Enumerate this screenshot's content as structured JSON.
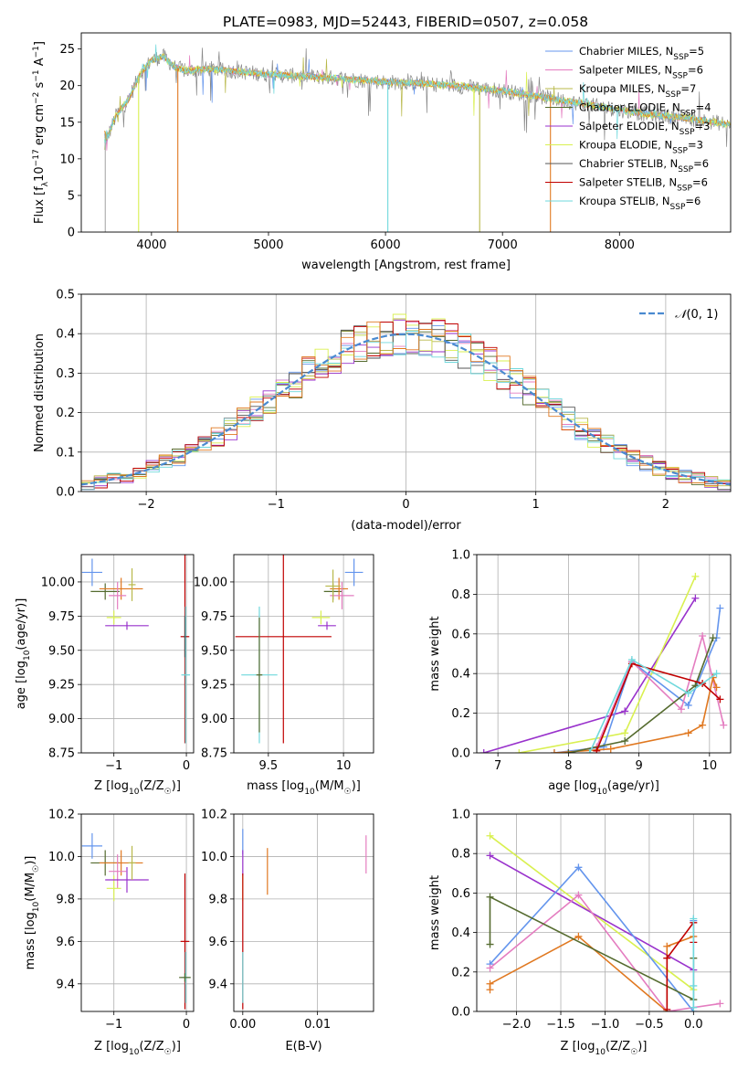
{
  "figure": {
    "title": "PLATE=0983, MJD=52443, FIBERID=0507, z=0.058"
  },
  "colors": {
    "chabrier_miles": "#6495ED",
    "salpeter_miles": "#E47DC0",
    "kroupa_miles": "#B8B84A",
    "chabrier_elodie": "#556B2F",
    "salpeter_elodie": "#9932CC",
    "kroupa_elodie": "#D9F050",
    "chabrier_stelib": "#555555",
    "salpeter_stelib": "#C00000",
    "kroupa_stelib": "#6FD8DC",
    "orange": "#E07820",
    "green": "#5E8A5E",
    "gauss": "#4A8AD0"
  },
  "chart_data": [
    {
      "id": "spectrum",
      "type": "line",
      "title": "PLATE=0983, MJD=52443, FIBERID=0507, z=0.058",
      "xlabel": "wavelength [Angstrom, rest frame]",
      "ylabel_prefix": "Flux [f",
      "ylabel_sub": "λ",
      "ylabel_mid": "10",
      "ylabel_sup1": "−17",
      "ylabel_mid2": " erg cm",
      "ylabel_sup2": "−2",
      "ylabel_mid3": " s",
      "ylabel_sup3": "−1",
      "ylabel_mid4": " A",
      "ylabel_sup4": "−1",
      "ylabel_end": "]",
      "xlim": [
        3400,
        8950
      ],
      "ylim": [
        0,
        27.2
      ],
      "xticks": [
        4000,
        5000,
        6000,
        7000,
        8000
      ],
      "yticks": [
        0,
        5,
        10,
        15,
        20,
        25
      ],
      "legend_position": "upper-right",
      "legend": [
        {
          "model": "Chabrier MILES, N",
          "sub": "SSP",
          "count": "=5",
          "color": "#6495ED"
        },
        {
          "model": "Salpeter MILES, N",
          "sub": "SSP",
          "count": "=6",
          "color": "#E47DC0"
        },
        {
          "model": "Kroupa MILES, N",
          "sub": "SSP",
          "count": "=7",
          "color": "#B8B84A"
        },
        {
          "model": "Chabrier ELODIE, N",
          "sub": "SSP",
          "count": "=4",
          "color": "#556B2F"
        },
        {
          "model": "Salpeter ELODIE, N",
          "sub": "SSP",
          "count": "=3",
          "color": "#9932CC"
        },
        {
          "model": "Kroupa ELODIE, N",
          "sub": "SSP",
          "count": "=3",
          "color": "#D9F050"
        },
        {
          "model": "Chabrier STELIB, N",
          "sub": "SSP",
          "count": "=6",
          "color": "#555555"
        },
        {
          "model": "Salpeter STELIB, N",
          "sub": "SSP",
          "count": "=6",
          "color": "#C00000"
        },
        {
          "model": "Kroupa STELIB, N",
          "sub": "SSP",
          "count": "=6",
          "color": "#6FD8DC"
        }
      ],
      "continuum": {
        "x": [
          3600,
          3700,
          3800,
          3900,
          4000,
          4100,
          4200,
          4300,
          4500,
          4700,
          5000,
          5300,
          5600,
          6000,
          6300,
          6600,
          7000,
          7400,
          7800,
          8200,
          8600,
          8900
        ],
        "y": [
          12.0,
          16.0,
          18.0,
          21.5,
          23.5,
          24.0,
          22.5,
          22.0,
          22.3,
          22.0,
          21.5,
          21.3,
          21.0,
          20.5,
          20.3,
          20.0,
          19.3,
          18.3,
          17.2,
          16.2,
          15.5,
          14.8
        ]
      },
      "spikes": [
        {
          "x": 3605,
          "ymin": 0,
          "color": "#aaaaaa"
        },
        {
          "x": 3890,
          "ymin": 0,
          "color": "#D9F050"
        },
        {
          "x": 4225,
          "ymin": 0,
          "color": "#E07820"
        },
        {
          "x": 6020,
          "ymin": 0,
          "color": "#6FD8DC"
        },
        {
          "x": 6805,
          "ymin": 0,
          "color": "#B8B84A"
        },
        {
          "x": 7410,
          "ymin": 0,
          "color": "#E07820"
        }
      ]
    },
    {
      "id": "residuals",
      "type": "bar",
      "xlabel": "(data-model)/error",
      "ylabel": "Normed distribution",
      "xlim": [
        -2.5,
        2.5
      ],
      "ylim": [
        0,
        0.5
      ],
      "xticks": [
        -2,
        -1,
        0,
        1,
        2
      ],
      "yticks": [
        0.0,
        0.1,
        0.2,
        0.3,
        0.4,
        0.5
      ],
      "legend_position": "upper-right",
      "gauss_label": "(0, 1)",
      "gauss_script": "𝒩",
      "bins": 50
    },
    {
      "id": "age_vs_Z",
      "type": "scatter",
      "xlabel_prefix": "Z [log",
      "xlabel_sub": "10",
      "xlabel_body": "(Z/Z",
      "xlabel_sub2": "☉",
      "xlabel_end": ")]",
      "ylabel_prefix": "age  [log",
      "ylabel_sub": "10",
      "ylabel_body": "(age/yr)]",
      "xlim": [
        -1.45,
        0.1
      ],
      "ylim": [
        8.75,
        10.2
      ],
      "xticks": [
        -1,
        0
      ],
      "yticks": [
        8.75,
        9.0,
        9.25,
        9.5,
        9.75,
        10.0
      ],
      "points": [
        {
          "x": -1.3,
          "y": 10.07,
          "xerr": 0.14,
          "yerr": 0.1,
          "color": "#6495ED"
        },
        {
          "x": -1.12,
          "y": 9.93,
          "xerr": 0.2,
          "yerr": 0.06,
          "color": "#556B2F"
        },
        {
          "x": -0.9,
          "y": 9.95,
          "xerr": 0.3,
          "yerr": 0.08,
          "color": "#E07820"
        },
        {
          "x": -0.95,
          "y": 9.9,
          "xerr": 0.12,
          "yerr": 0.1,
          "color": "#E47DC0"
        },
        {
          "x": -1.0,
          "y": 9.74,
          "xerr": 0.1,
          "yerr": 0.05,
          "color": "#D9F050"
        },
        {
          "x": -0.82,
          "y": 9.68,
          "xerr": 0.3,
          "yerr": 0.03,
          "color": "#9932CC"
        },
        {
          "x": -0.75,
          "y": 9.98,
          "xerr": 0.05,
          "yerr": 0.12,
          "color": "#B8B84A"
        },
        {
          "x": -0.02,
          "y": 9.6,
          "xerr": 0.06,
          "yerr": 0.78,
          "color": "#C00000"
        },
        {
          "x": -0.01,
          "y": 9.32,
          "xerr": 0.06,
          "yerr": 0.5,
          "color": "#6FD8DC"
        },
        {
          "x": -0.02,
          "y": 9.6,
          "xerr": 0.02,
          "yerr": 0.15,
          "color": "#555555"
        }
      ]
    },
    {
      "id": "age_vs_mass",
      "type": "scatter",
      "xlabel_prefix": "mass [log",
      "xlabel_sub": "10",
      "xlabel_body": "(M/M",
      "xlabel_sub2": "☉",
      "xlabel_end": ")]",
      "xlim": [
        9.27,
        10.2
      ],
      "ylim": [
        8.75,
        10.2
      ],
      "xticks": [
        9.5,
        10.0
      ],
      "yticks": [
        8.75,
        9.0,
        9.25,
        9.5,
        9.75,
        10.0
      ],
      "points": [
        {
          "x": 10.07,
          "y": 10.07,
          "xerr": 0.06,
          "yerr": 0.1,
          "color": "#6495ED"
        },
        {
          "x": 9.93,
          "y": 9.93,
          "xerr": 0.06,
          "yerr": 0.06,
          "color": "#556B2F"
        },
        {
          "x": 9.97,
          "y": 9.95,
          "xerr": 0.06,
          "yerr": 0.08,
          "color": "#E07820"
        },
        {
          "x": 9.99,
          "y": 9.9,
          "xerr": 0.08,
          "yerr": 0.1,
          "color": "#E47DC0"
        },
        {
          "x": 9.85,
          "y": 9.74,
          "xerr": 0.06,
          "yerr": 0.05,
          "color": "#D9F050"
        },
        {
          "x": 9.89,
          "y": 9.68,
          "xerr": 0.06,
          "yerr": 0.03,
          "color": "#9932CC"
        },
        {
          "x": 9.93,
          "y": 9.97,
          "xerr": 0.05,
          "yerr": 0.12,
          "color": "#B8B84A"
        },
        {
          "x": 9.6,
          "y": 9.6,
          "xerr": 0.32,
          "yerr": 0.78,
          "color": "#C00000"
        },
        {
          "x": 9.44,
          "y": 9.32,
          "xerr": 0.12,
          "yerr": 0.5,
          "color": "#6FD8DC"
        },
        {
          "x": 9.44,
          "y": 9.32,
          "xerr": 0.02,
          "yerr": 0.42,
          "color": "#556B2F"
        }
      ]
    },
    {
      "id": "weight_vs_age",
      "type": "line",
      "xlabel_prefix": "age  [log",
      "xlabel_sub": "10",
      "xlabel_body": "(age/yr)]",
      "ylabel": "mass weight",
      "xlim": [
        6.7,
        10.3
      ],
      "ylim": [
        0,
        1.0
      ],
      "xticks": [
        7,
        8,
        9,
        10
      ],
      "yticks": [
        0.0,
        0.2,
        0.4,
        0.6,
        0.8,
        1.0
      ],
      "series": [
        {
          "color": "#9932CC",
          "x": [
            6.8,
            8.8,
            9.8
          ],
          "y": [
            0.0,
            0.21,
            0.78
          ]
        },
        {
          "color": "#D9F050",
          "x": [
            7.3,
            8.8,
            9.8
          ],
          "y": [
            0.0,
            0.1,
            0.89
          ]
        },
        {
          "color": "#6495ED",
          "x": [
            7.8,
            8.5,
            8.9,
            9.7,
            10.1,
            10.15
          ],
          "y": [
            0.0,
            0.03,
            0.46,
            0.24,
            0.58,
            0.73
          ]
        },
        {
          "color": "#E47DC0",
          "x": [
            8.0,
            8.4,
            8.9,
            9.6,
            9.9,
            10.2
          ],
          "y": [
            0.0,
            0.03,
            0.46,
            0.22,
            0.59,
            0.14
          ]
        },
        {
          "color": "#E07820",
          "x": [
            7.8,
            8.6,
            9.7,
            9.9,
            10.05,
            10.1
          ],
          "y": [
            0.0,
            0.02,
            0.1,
            0.14,
            0.38,
            0.33
          ]
        },
        {
          "color": "#556B2F",
          "x": [
            8.0,
            8.8,
            9.8,
            10.05
          ],
          "y": [
            0.0,
            0.06,
            0.34,
            0.58
          ]
        },
        {
          "color": "#C00000",
          "x": [
            8.4,
            8.9,
            9.9,
            10.15
          ],
          "y": [
            0.01,
            0.45,
            0.35,
            0.27
          ]
        },
        {
          "color": "#6FD8DC",
          "x": [
            8.3,
            8.9,
            9.7,
            10.1
          ],
          "y": [
            0.0,
            0.47,
            0.3,
            0.4
          ]
        }
      ]
    },
    {
      "id": "mass_vs_Z",
      "type": "scatter",
      "xlabel_prefix": "Z [log",
      "xlabel_sub": "10",
      "xlabel_body": "(Z/Z",
      "xlabel_sub2": "☉",
      "xlabel_end": ")]",
      "ylabel_prefix": "mass [log",
      "ylabel_sub": "10",
      "ylabel_body": "(M/M",
      "ylabel_sub2": "☉",
      "ylabel_end": ")]",
      "xlim": [
        -1.45,
        0.1
      ],
      "ylim": [
        9.27,
        10.2
      ],
      "xticks": [
        -1,
        0
      ],
      "yticks": [
        9.4,
        9.6,
        9.8,
        10.0,
        10.2
      ],
      "points": [
        {
          "x": -1.3,
          "y": 10.05,
          "xerr": 0.14,
          "yerr": 0.06,
          "color": "#6495ED"
        },
        {
          "x": -1.12,
          "y": 9.97,
          "xerr": 0.2,
          "yerr": 0.06,
          "color": "#556B2F"
        },
        {
          "x": -0.9,
          "y": 9.97,
          "xerr": 0.3,
          "yerr": 0.06,
          "color": "#E07820"
        },
        {
          "x": -0.95,
          "y": 9.93,
          "xerr": 0.12,
          "yerr": 0.08,
          "color": "#E47DC0"
        },
        {
          "x": -1.0,
          "y": 9.85,
          "xerr": 0.1,
          "yerr": 0.06,
          "color": "#D9F050"
        },
        {
          "x": -0.82,
          "y": 9.89,
          "xerr": 0.3,
          "yerr": 0.06,
          "color": "#9932CC"
        },
        {
          "x": -0.75,
          "y": 9.97,
          "xerr": 0.05,
          "yerr": 0.08,
          "color": "#B8B84A"
        },
        {
          "x": -0.02,
          "y": 9.6,
          "xerr": 0.06,
          "yerr": 0.32,
          "color": "#C00000"
        },
        {
          "x": -0.01,
          "y": 9.43,
          "xerr": 0.06,
          "yerr": 0.12,
          "color": "#6FD8DC"
        },
        {
          "x": -0.02,
          "y": 9.43,
          "xerr": 0.08,
          "yerr": 0.02,
          "color": "#556B2F"
        }
      ]
    },
    {
      "id": "mass_vs_ebv",
      "type": "scatter",
      "xlabel": "E(B-V)",
      "xlim": [
        -0.0012,
        0.0175
      ],
      "ylim": [
        9.27,
        10.2
      ],
      "xticks": [
        0.0,
        0.01
      ],
      "xtick_labels": [
        "0.00",
        "0.01"
      ],
      "yticks": [
        9.4,
        9.6,
        9.8,
        10.0,
        10.2
      ],
      "points": [
        {
          "x": 0.0,
          "y": 10.07,
          "yerr": 0.06,
          "color": "#6495ED"
        },
        {
          "x": 0.0,
          "y": 9.97,
          "yerr": 0.06,
          "color": "#9932CC"
        },
        {
          "x": 0.0,
          "y": 9.85,
          "yerr": 0.06,
          "color": "#D9F050"
        },
        {
          "x": 0.0,
          "y": 9.6,
          "yerr": 0.32,
          "color": "#C00000"
        },
        {
          "x": 0.0,
          "y": 9.43,
          "yerr": 0.12,
          "color": "#6FD8DC"
        },
        {
          "x": 0.0033,
          "y": 9.93,
          "yerr": 0.11,
          "color": "#E07820"
        },
        {
          "x": 0.0165,
          "y": 10.01,
          "yerr": 0.09,
          "color": "#E47DC0"
        }
      ]
    },
    {
      "id": "weight_vs_Z",
      "type": "line",
      "xlabel_prefix": "Z [log",
      "xlabel_sub": "10",
      "xlabel_body": "(Z/Z",
      "xlabel_sub2": "☉",
      "xlabel_end": ")]",
      "ylabel": "mass weight",
      "xlim": [
        -2.45,
        0.42
      ],
      "ylim": [
        0,
        1.0
      ],
      "xticks": [
        -2.0,
        -1.5,
        -1.0,
        -0.5,
        0.0
      ],
      "xtick_labels": [
        "−2.0",
        "−1.5",
        "−1.0",
        "−0.5",
        "0.0"
      ],
      "yticks": [
        0.0,
        0.2,
        0.4,
        0.6,
        0.8,
        1.0
      ],
      "series": [
        {
          "color": "#D9F050",
          "x": [
            -2.3,
            0.0
          ],
          "y": [
            0.89,
            0.11
          ]
        },
        {
          "color": "#9932CC",
          "x": [
            -2.3,
            0.0
          ],
          "y": [
            0.79,
            0.21
          ]
        },
        {
          "color": "#6495ED",
          "x": [
            -2.3,
            -1.3,
            0.0,
            0.0
          ],
          "y": [
            0.24,
            0.73,
            0.0,
            0.46
          ]
        },
        {
          "color": "#E47DC0",
          "x": [
            -2.3,
            -1.3,
            -0.3,
            0.3
          ],
          "y": [
            0.22,
            0.59,
            0.0,
            0.04
          ]
        },
        {
          "color": "#E07820",
          "x": [
            -2.3,
            -2.3,
            -1.3,
            -0.3,
            -0.3,
            0.0
          ],
          "y": [
            0.11,
            0.14,
            0.38,
            0.0,
            0.33,
            0.38
          ]
        },
        {
          "color": "#556B2F",
          "x": [
            -2.3,
            -2.3,
            0.0,
            0.0
          ],
          "y": [
            0.34,
            0.58,
            0.06,
            0.27
          ]
        },
        {
          "color": "#C00000",
          "x": [
            -0.3,
            -0.3,
            0.0,
            0.0
          ],
          "y": [
            0.01,
            0.27,
            0.45,
            0.35
          ]
        },
        {
          "color": "#6FD8DC",
          "x": [
            0.0,
            0.0,
            0.0
          ],
          "y": [
            0.02,
            0.13,
            0.47
          ]
        }
      ]
    }
  ]
}
